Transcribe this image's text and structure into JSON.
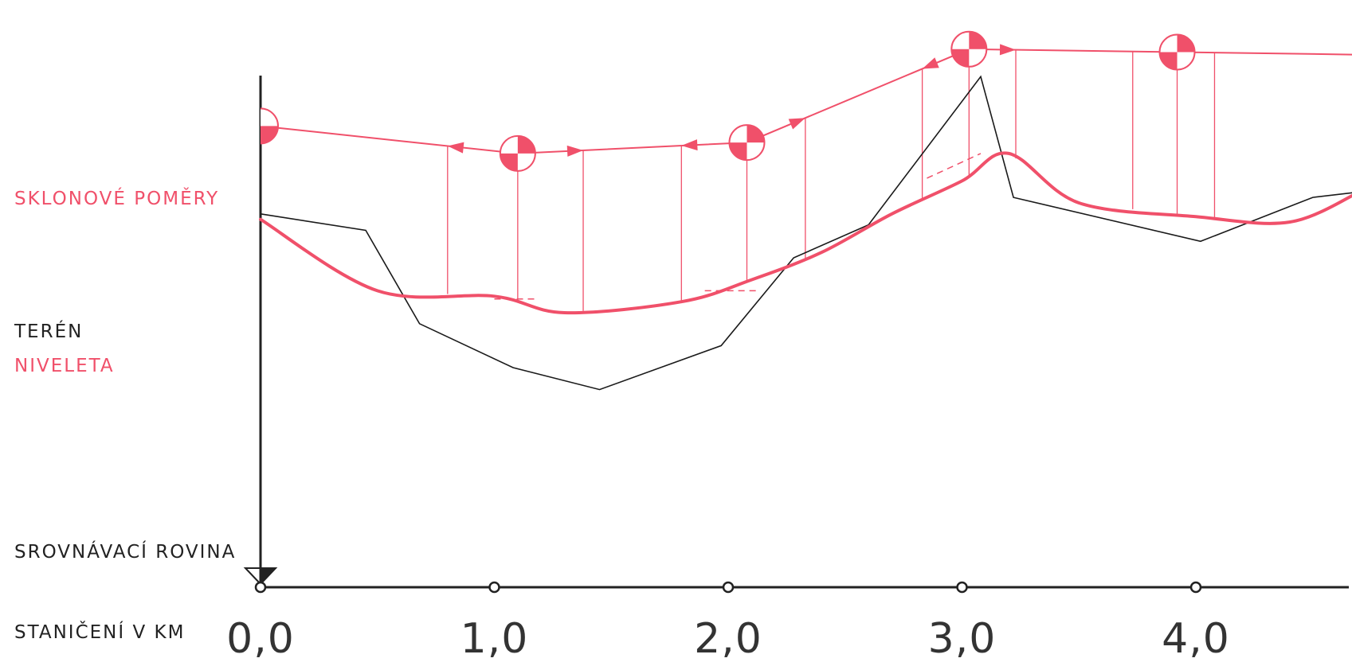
{
  "labels": {
    "slope": "SKLONOVÉ POMĚRY",
    "terrain": "TERÉN",
    "grade_line": "NIVELETA",
    "datum": "SROVNÁVACÍ ROVINA",
    "stationing": "STANIČENÍ V KM"
  },
  "chart_data": {
    "type": "line",
    "x_label": "STANIČENÍ V KM",
    "x_ticks": [
      "0,0",
      "1,0",
      "2,0",
      "3,0",
      "4,0"
    ],
    "xlim": [
      0,
      4.7
    ],
    "series": [
      {
        "name": "TERÉN",
        "x": [
          0,
          0.45,
          0.68,
          1.08,
          1.45,
          1.97,
          2.28,
          2.6,
          3.08,
          3.22,
          4.02,
          4.5,
          4.7
        ],
        "y": [
          0.68,
          0.65,
          0.48,
          0.4,
          0.36,
          0.44,
          0.6,
          0.66,
          0.93,
          0.71,
          0.63,
          0.71,
          0.72
        ]
      },
      {
        "name": "NIVELETA",
        "x": [
          0,
          0.5,
          1.0,
          1.3,
          1.8,
          2.1,
          2.4,
          2.7,
          3.0,
          3.2,
          3.5,
          4.0,
          4.4,
          4.7
        ],
        "y": [
          0.67,
          0.54,
          0.53,
          0.5,
          0.52,
          0.56,
          0.61,
          0.68,
          0.74,
          0.79,
          0.7,
          0.675,
          0.665,
          0.72
        ],
        "smooth": true
      }
    ],
    "slope_diagram": {
      "name": "SKLONOVÉ POMĚRY",
      "polyline_x": [
        0,
        1.1,
        2.08,
        3.03,
        4.7
      ],
      "polyline_y": [
        0.84,
        0.79,
        0.81,
        0.98,
        0.97
      ],
      "break_points_x": [
        0,
        1.1,
        2.08,
        3.03,
        3.92
      ]
    },
    "colors": {
      "terrain": "#1a1a1a",
      "grade_line": "#f0506a",
      "axis": "#222222"
    }
  }
}
